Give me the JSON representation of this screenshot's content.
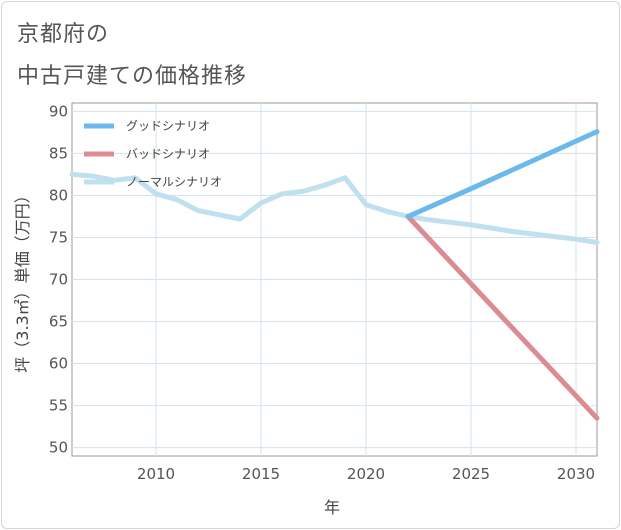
{
  "title_line1": "京都府の",
  "title_line2": "中古戸建ての価格推移",
  "chart_data": {
    "type": "line",
    "xlabel": "年",
    "ylabel": "坪（3.3㎡）単価（万円）",
    "xlim": [
      2006,
      2031
    ],
    "ylim": [
      49,
      91
    ],
    "x_ticks": [
      2010,
      2015,
      2020,
      2025,
      2030
    ],
    "y_ticks": [
      50,
      55,
      60,
      65,
      70,
      75,
      80,
      85,
      90
    ],
    "grid": true,
    "legend_position": "top-left",
    "series": [
      {
        "name": "グッドシナリオ",
        "color": "#6bb8ec",
        "x": [
          2022,
          2025,
          2031
        ],
        "y": [
          77.5,
          80.8,
          87.6
        ]
      },
      {
        "name": "バッドシナリオ",
        "color": "#dc8b92",
        "x": [
          2022,
          2031
        ],
        "y": [
          77.5,
          53.5
        ]
      },
      {
        "name": "ノーマルシナリオ",
        "color": "#bfe0ef",
        "x": [
          2006,
          2007,
          2008,
          2009,
          2010,
          2011,
          2012,
          2013,
          2014,
          2015,
          2016,
          2017,
          2018,
          2019,
          2020,
          2021,
          2022,
          2023,
          2024,
          2025,
          2026,
          2027,
          2028,
          2029,
          2030,
          2031
        ],
        "y": [
          82.5,
          82.3,
          81.8,
          82.1,
          80.2,
          79.5,
          78.2,
          77.7,
          77.2,
          79.1,
          80.2,
          80.5,
          81.2,
          82.1,
          78.9,
          78.1,
          77.5,
          77.1,
          76.8,
          76.5,
          76.1,
          75.7,
          75.4,
          75.1,
          74.8,
          74.4
        ]
      }
    ]
  }
}
